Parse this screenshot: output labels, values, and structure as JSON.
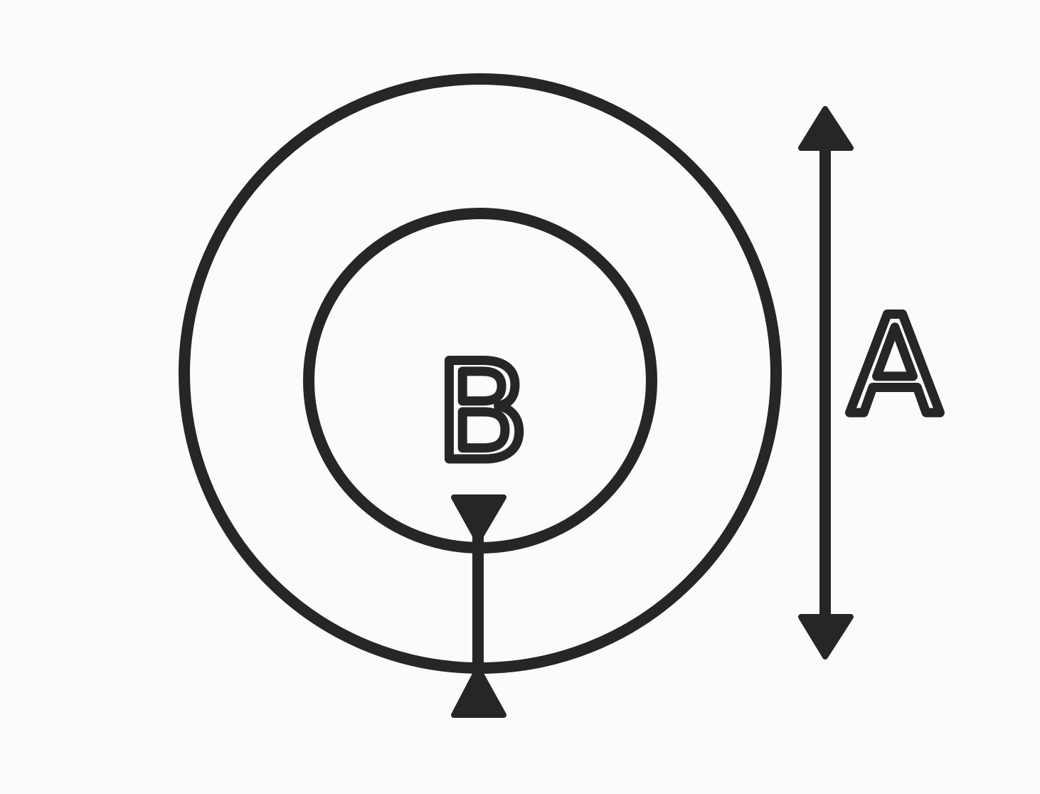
{
  "diagram": {
    "labels": {
      "outer_diameter": "A",
      "inner_circle": "B"
    },
    "colors": {
      "background": "#fbfbfb",
      "ink": "#262626"
    }
  }
}
